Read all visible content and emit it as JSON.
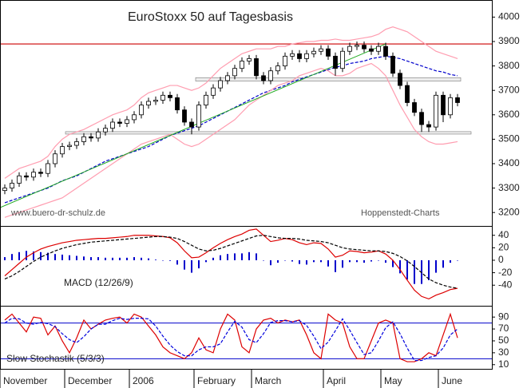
{
  "chart_data": [
    {
      "type": "candlestick",
      "title": "EuroStoxx 50 auf Tagesbasis",
      "source": "www.buero-dr-schulz.de",
      "credit": "Hoppenstedt-Charts",
      "open": [
        3290,
        3300,
        3320,
        3350,
        3345,
        3365,
        3360,
        3400,
        3440,
        3470,
        3475,
        3490,
        3510,
        3505,
        3530,
        3545,
        3570,
        3565,
        3580,
        3600,
        3640,
        3655,
        3660,
        3680,
        3670,
        3620,
        3570,
        3550,
        3640,
        3680,
        3710,
        3740,
        3760,
        3790,
        3820,
        3830,
        3760,
        3740,
        3780,
        3800,
        3840,
        3850,
        3830,
        3850,
        3860,
        3870,
        3840,
        3790,
        3860,
        3880,
        3885,
        3870,
        3860,
        3880,
        3840,
        3770,
        3720,
        3650,
        3610,
        3560,
        3550,
        3680,
        3600,
        3670
      ],
      "high": [
        3315,
        3335,
        3365,
        3365,
        3380,
        3380,
        3415,
        3455,
        3485,
        3490,
        3505,
        3525,
        3525,
        3545,
        3560,
        3585,
        3585,
        3595,
        3615,
        3655,
        3670,
        3675,
        3695,
        3695,
        3685,
        3635,
        3585,
        3655,
        3695,
        3725,
        3755,
        3775,
        3805,
        3835,
        3845,
        3845,
        3775,
        3795,
        3815,
        3855,
        3865,
        3865,
        3865,
        3875,
        3885,
        3885,
        3855,
        3875,
        3895,
        3900,
        3900,
        3885,
        3895,
        3895,
        3855,
        3785,
        3735,
        3665,
        3625,
        3575,
        3695,
        3695,
        3685,
        3685
      ],
      "low": [
        3275,
        3285,
        3305,
        3330,
        3330,
        3345,
        3345,
        3385,
        3425,
        3455,
        3460,
        3475,
        3490,
        3490,
        3515,
        3530,
        3550,
        3550,
        3565,
        3585,
        3625,
        3640,
        3645,
        3655,
        3605,
        3555,
        3520,
        3535,
        3625,
        3665,
        3695,
        3725,
        3745,
        3775,
        3805,
        3745,
        3725,
        3725,
        3765,
        3785,
        3825,
        3815,
        3815,
        3835,
        3845,
        3825,
        3760,
        3775,
        3845,
        3865,
        3855,
        3845,
        3845,
        3825,
        3755,
        3705,
        3635,
        3595,
        3530,
        3530,
        3535,
        3570,
        3585,
        3635
      ],
      "close": [
        3300,
        3320,
        3350,
        3345,
        3365,
        3360,
        3400,
        3440,
        3470,
        3475,
        3490,
        3510,
        3505,
        3530,
        3545,
        3570,
        3565,
        3580,
        3600,
        3640,
        3655,
        3660,
        3680,
        3670,
        3620,
        3570,
        3550,
        3640,
        3680,
        3710,
        3740,
        3760,
        3790,
        3820,
        3830,
        3760,
        3740,
        3780,
        3800,
        3840,
        3850,
        3830,
        3850,
        3860,
        3870,
        3840,
        3790,
        3860,
        3880,
        3885,
        3870,
        3860,
        3880,
        3840,
        3770,
        3720,
        3650,
        3610,
        3560,
        3550,
        3680,
        3600,
        3670,
        3650
      ],
      "up_color": "#ffffff",
      "down_color": "#000000",
      "series": [
        {
          "color": "#0000cc",
          "dashed": true,
          "values": [
            3240,
            3250,
            3260,
            3270,
            3280,
            3290,
            3300,
            3315,
            3330,
            3340,
            3350,
            3365,
            3380,
            3395,
            3410,
            3420,
            3430,
            3440,
            3450,
            3460,
            3470,
            3485,
            3500,
            3515,
            3525,
            3535,
            3545,
            3555,
            3570,
            3585,
            3600,
            3615,
            3630,
            3645,
            3660,
            3675,
            3690,
            3700,
            3710,
            3720,
            3735,
            3745,
            3755,
            3765,
            3775,
            3785,
            3795,
            3800,
            3810,
            3815,
            3820,
            3830,
            3835,
            3840,
            3835,
            3830,
            3820,
            3810,
            3800,
            3790,
            3780,
            3775,
            3765,
            3760
          ]
        },
        {
          "color": "#ff9db0",
          "values": [
            3340,
            3360,
            3380,
            3390,
            3400,
            3410,
            3430,
            3470,
            3500,
            3520,
            3530,
            3540,
            3555,
            3570,
            3585,
            3600,
            3610,
            3620,
            3640,
            3670,
            3690,
            3700,
            3710,
            3720,
            3720,
            3710,
            3700,
            3710,
            3730,
            3760,
            3790,
            3810,
            3830,
            3850,
            3860,
            3870,
            3870,
            3870,
            3880,
            3880,
            3890,
            3895,
            3900,
            3900,
            3905,
            3905,
            3910,
            3905,
            3905,
            3910,
            3915,
            3920,
            3930,
            3950,
            3960,
            3950,
            3940,
            3920,
            3900,
            3880,
            3860,
            3850,
            3840,
            3830
          ]
        },
        {
          "color": "#ff9db0",
          "values": [
            3180,
            3190,
            3200,
            3210,
            3220,
            3230,
            3240,
            3250,
            3260,
            3280,
            3300,
            3320,
            3340,
            3360,
            3380,
            3400,
            3420,
            3440,
            3460,
            3480,
            3490,
            3500,
            3510,
            3520,
            3500,
            3480,
            3470,
            3480,
            3500,
            3520,
            3540,
            3560,
            3580,
            3610,
            3640,
            3660,
            3680,
            3700,
            3720,
            3730,
            3740,
            3760,
            3770,
            3780,
            3790,
            3780,
            3760,
            3760,
            3770,
            3790,
            3800,
            3810,
            3790,
            3760,
            3700,
            3640,
            3590,
            3540,
            3510,
            3490,
            3480,
            3480,
            3485,
            3490
          ]
        }
      ],
      "trend_line": {
        "color": "#22aa22",
        "values": [
          3220,
          3890
        ]
      },
      "resistance": {
        "color": "#cc0000",
        "value": 3890
      },
      "zones": [
        [
          3738,
          3752
        ],
        [
          3521,
          3531
        ]
      ],
      "ylim": [
        3145,
        4070
      ],
      "yticks": [
        3200,
        3300,
        3400,
        3500,
        3600,
        3700,
        3800,
        3900,
        4000
      ]
    },
    {
      "type": "macd",
      "label": "MACD (12/26/9)",
      "series": [
        {
          "color": "#dd0000",
          "values": [
            -25,
            -15,
            -5,
            5,
            12,
            18,
            22,
            25,
            28,
            30,
            32,
            33,
            34,
            35,
            35,
            36,
            37,
            38,
            40,
            40,
            40,
            39,
            38,
            36,
            28,
            15,
            4,
            5,
            12,
            20,
            27,
            33,
            38,
            42,
            48,
            50,
            40,
            30,
            32,
            35,
            33,
            28,
            25,
            28,
            27,
            18,
            5,
            8,
            15,
            14,
            12,
            13,
            15,
            10,
            0,
            -15,
            -32,
            -48,
            -58,
            -62,
            -56,
            -52,
            -47,
            -45
          ]
        },
        {
          "color": "#000000",
          "dashed": true,
          "values": [
            -30,
            -25,
            -18,
            -10,
            -2,
            5,
            10,
            15,
            19,
            22,
            25,
            27,
            29,
            30,
            31,
            32,
            33,
            34,
            35,
            36,
            37,
            38,
            38,
            37,
            35,
            30,
            24,
            18,
            15,
            16,
            19,
            23,
            27,
            31,
            35,
            39,
            40,
            38,
            36,
            35,
            35,
            34,
            32,
            31,
            30,
            28,
            24,
            20,
            18,
            17,
            16,
            15,
            15,
            14,
            11,
            6,
            -1,
            -10,
            -20,
            -30,
            -36,
            -40,
            -43,
            -45
          ]
        }
      ],
      "histogram": {
        "color": "#0000cc",
        "values": [
          5,
          10,
          13,
          15,
          14,
          13,
          12,
          10,
          9,
          8,
          7,
          6,
          5,
          5,
          4,
          4,
          4,
          4,
          5,
          4,
          3,
          1,
          0,
          -1,
          -7,
          -15,
          -20,
          -13,
          -3,
          4,
          8,
          10,
          11,
          11,
          13,
          11,
          0,
          -8,
          -4,
          0,
          -2,
          -6,
          -7,
          -3,
          -3,
          -10,
          -19,
          -12,
          -3,
          -3,
          -4,
          -2,
          0,
          -4,
          -11,
          -21,
          -31,
          -38,
          -38,
          -32,
          -20,
          -12,
          -4,
          0
        ]
      },
      "ylim": [
        -73,
        55
      ],
      "yticks": [
        -40,
        -20,
        0,
        20,
        40
      ]
    },
    {
      "type": "stochastic",
      "label": "Slow Stochastik (5/3/3)",
      "series": [
        {
          "color": "#dd0000",
          "values": [
            85,
            95,
            80,
            65,
            90,
            88,
            60,
            75,
            50,
            30,
            55,
            85,
            70,
            78,
            85,
            88,
            90,
            80,
            95,
            90,
            75,
            60,
            40,
            30,
            25,
            20,
            30,
            55,
            35,
            30,
            70,
            95,
            85,
            40,
            30,
            70,
            85,
            88,
            80,
            85,
            82,
            85,
            60,
            30,
            20,
            95,
            85,
            80,
            40,
            20,
            20,
            50,
            80,
            85,
            80,
            20,
            15,
            15,
            20,
            30,
            25,
            60,
            95,
            55
          ]
        },
        {
          "color": "#0000dd",
          "dashed": true,
          "values": [
            80,
            88,
            87,
            80,
            78,
            81,
            79,
            74,
            62,
            52,
            47,
            57,
            70,
            78,
            78,
            84,
            88,
            86,
            88,
            88,
            87,
            75,
            58,
            43,
            32,
            25,
            25,
            35,
            40,
            40,
            45,
            65,
            83,
            73,
            52,
            47,
            62,
            81,
            84,
            84,
            82,
            84,
            76,
            58,
            37,
            48,
            67,
            87,
            68,
            47,
            27,
            30,
            50,
            72,
            82,
            62,
            38,
            17,
            17,
            22,
            25,
            38,
            60,
            70
          ]
        }
      ],
      "levels": [
        80,
        20
      ],
      "level_color": "#0000cc",
      "categories": [
        "November",
        null,
        null,
        null,
        null,
        null,
        null,
        null,
        null,
        "December",
        null,
        null,
        null,
        null,
        null,
        null,
        null,
        null,
        "2006",
        null,
        null,
        null,
        null,
        null,
        null,
        null,
        null,
        "February",
        null,
        null,
        null,
        null,
        null,
        null,
        null,
        "March",
        null,
        null,
        null,
        null,
        null,
        null,
        null,
        null,
        null,
        "April",
        null,
        null,
        null,
        null,
        null,
        null,
        null,
        "May",
        null,
        null,
        null,
        null,
        null,
        null,
        null,
        "June",
        null,
        null
      ],
      "ylim": [
        3,
        109
      ],
      "yticks": [
        10,
        30,
        50,
        70,
        90
      ]
    }
  ]
}
